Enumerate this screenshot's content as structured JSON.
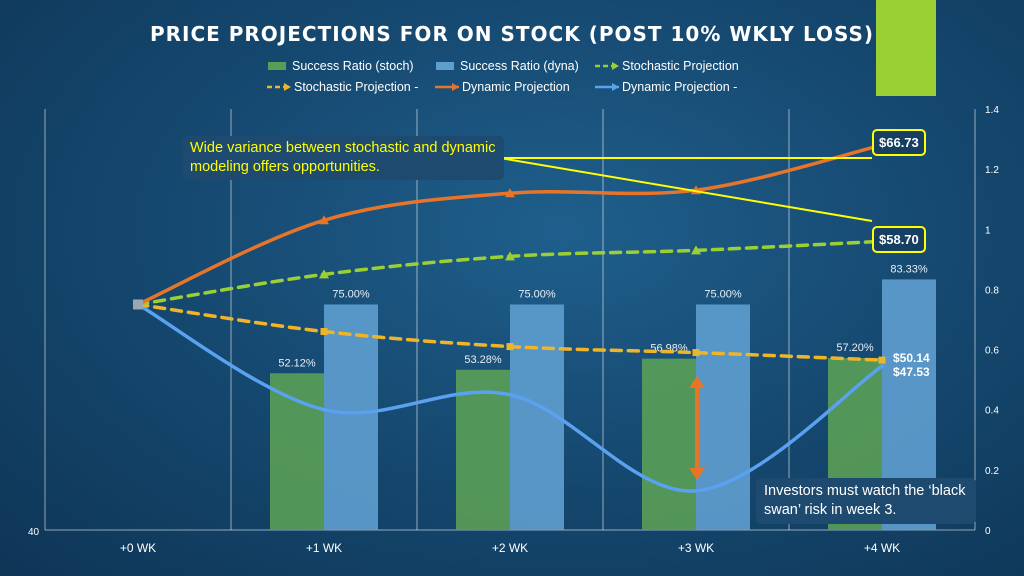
{
  "title": "PRICE PROJECTIONS FOR ON STOCK (POST 10% WKLY LOSS)",
  "callouts": {
    "variance": "Wide variance between stochastic and dynamic modeling offers opportunities.",
    "black_swan": "Investors must watch the ‘black swan’ risk in week 3."
  },
  "price_boxes": {
    "dynamic_end": "$66.73",
    "stochastic_end": "$58.70"
  },
  "colors": {
    "accent": "#9bd035",
    "bar_stoch": "#5a9e56",
    "bar_dyna": "#5e9fcf",
    "stoch_up": "#9bd035",
    "stoch_down": "#f0b428",
    "dyna_up": "#e8742a",
    "dyna_down": "#5aa2f0",
    "callout": "#ffff00"
  },
  "chart_data": {
    "type": "bar+line",
    "title": "PRICE PROJECTIONS FOR ON STOCK (POST 10% WKLY LOSS)",
    "categories": [
      "+0 WK",
      "+1 WK",
      "+2 WK",
      "+3 WK",
      "+4 WK"
    ],
    "left_axis": {
      "min_label": "40"
    },
    "right_axis": {
      "range": [
        0,
        1.4
      ],
      "ticks": [
        "0",
        "0.2",
        "0.4",
        "0.6",
        "0.8",
        "1",
        "1.2",
        "1.4"
      ]
    },
    "bars": [
      {
        "name": "Success Ratio (stoch)",
        "values": [
          null,
          0.5212,
          0.5328,
          0.5698,
          0.572
        ],
        "labels": [
          "",
          "52.12%",
          "53.28%",
          "56.98%",
          "57.20%"
        ]
      },
      {
        "name": "Success Ratio (dyna)",
        "values": [
          null,
          0.75,
          0.75,
          0.75,
          0.8333
        ],
        "labels": [
          "",
          "75.00%",
          "75.00%",
          "75.00%",
          "83.33%"
        ]
      }
    ],
    "lines": [
      {
        "name": "Stochastic Projection",
        "y_right": [
          0.75,
          0.85,
          0.91,
          0.93,
          0.96
        ],
        "end_label": "$58.70"
      },
      {
        "name": "Stochastic Projection -",
        "y_right": [
          0.75,
          0.66,
          0.61,
          0.59,
          0.565
        ],
        "end_label": "$50.14"
      },
      {
        "name": "Dynamic Projection",
        "y_right": [
          0.75,
          1.03,
          1.12,
          1.13,
          1.28
        ],
        "end_label": "$66.73"
      },
      {
        "name": "Dynamic Projection -",
        "y_right": [
          0.75,
          0.4,
          0.45,
          0.13,
          0.545
        ],
        "end_label": "$47.53"
      }
    ]
  }
}
